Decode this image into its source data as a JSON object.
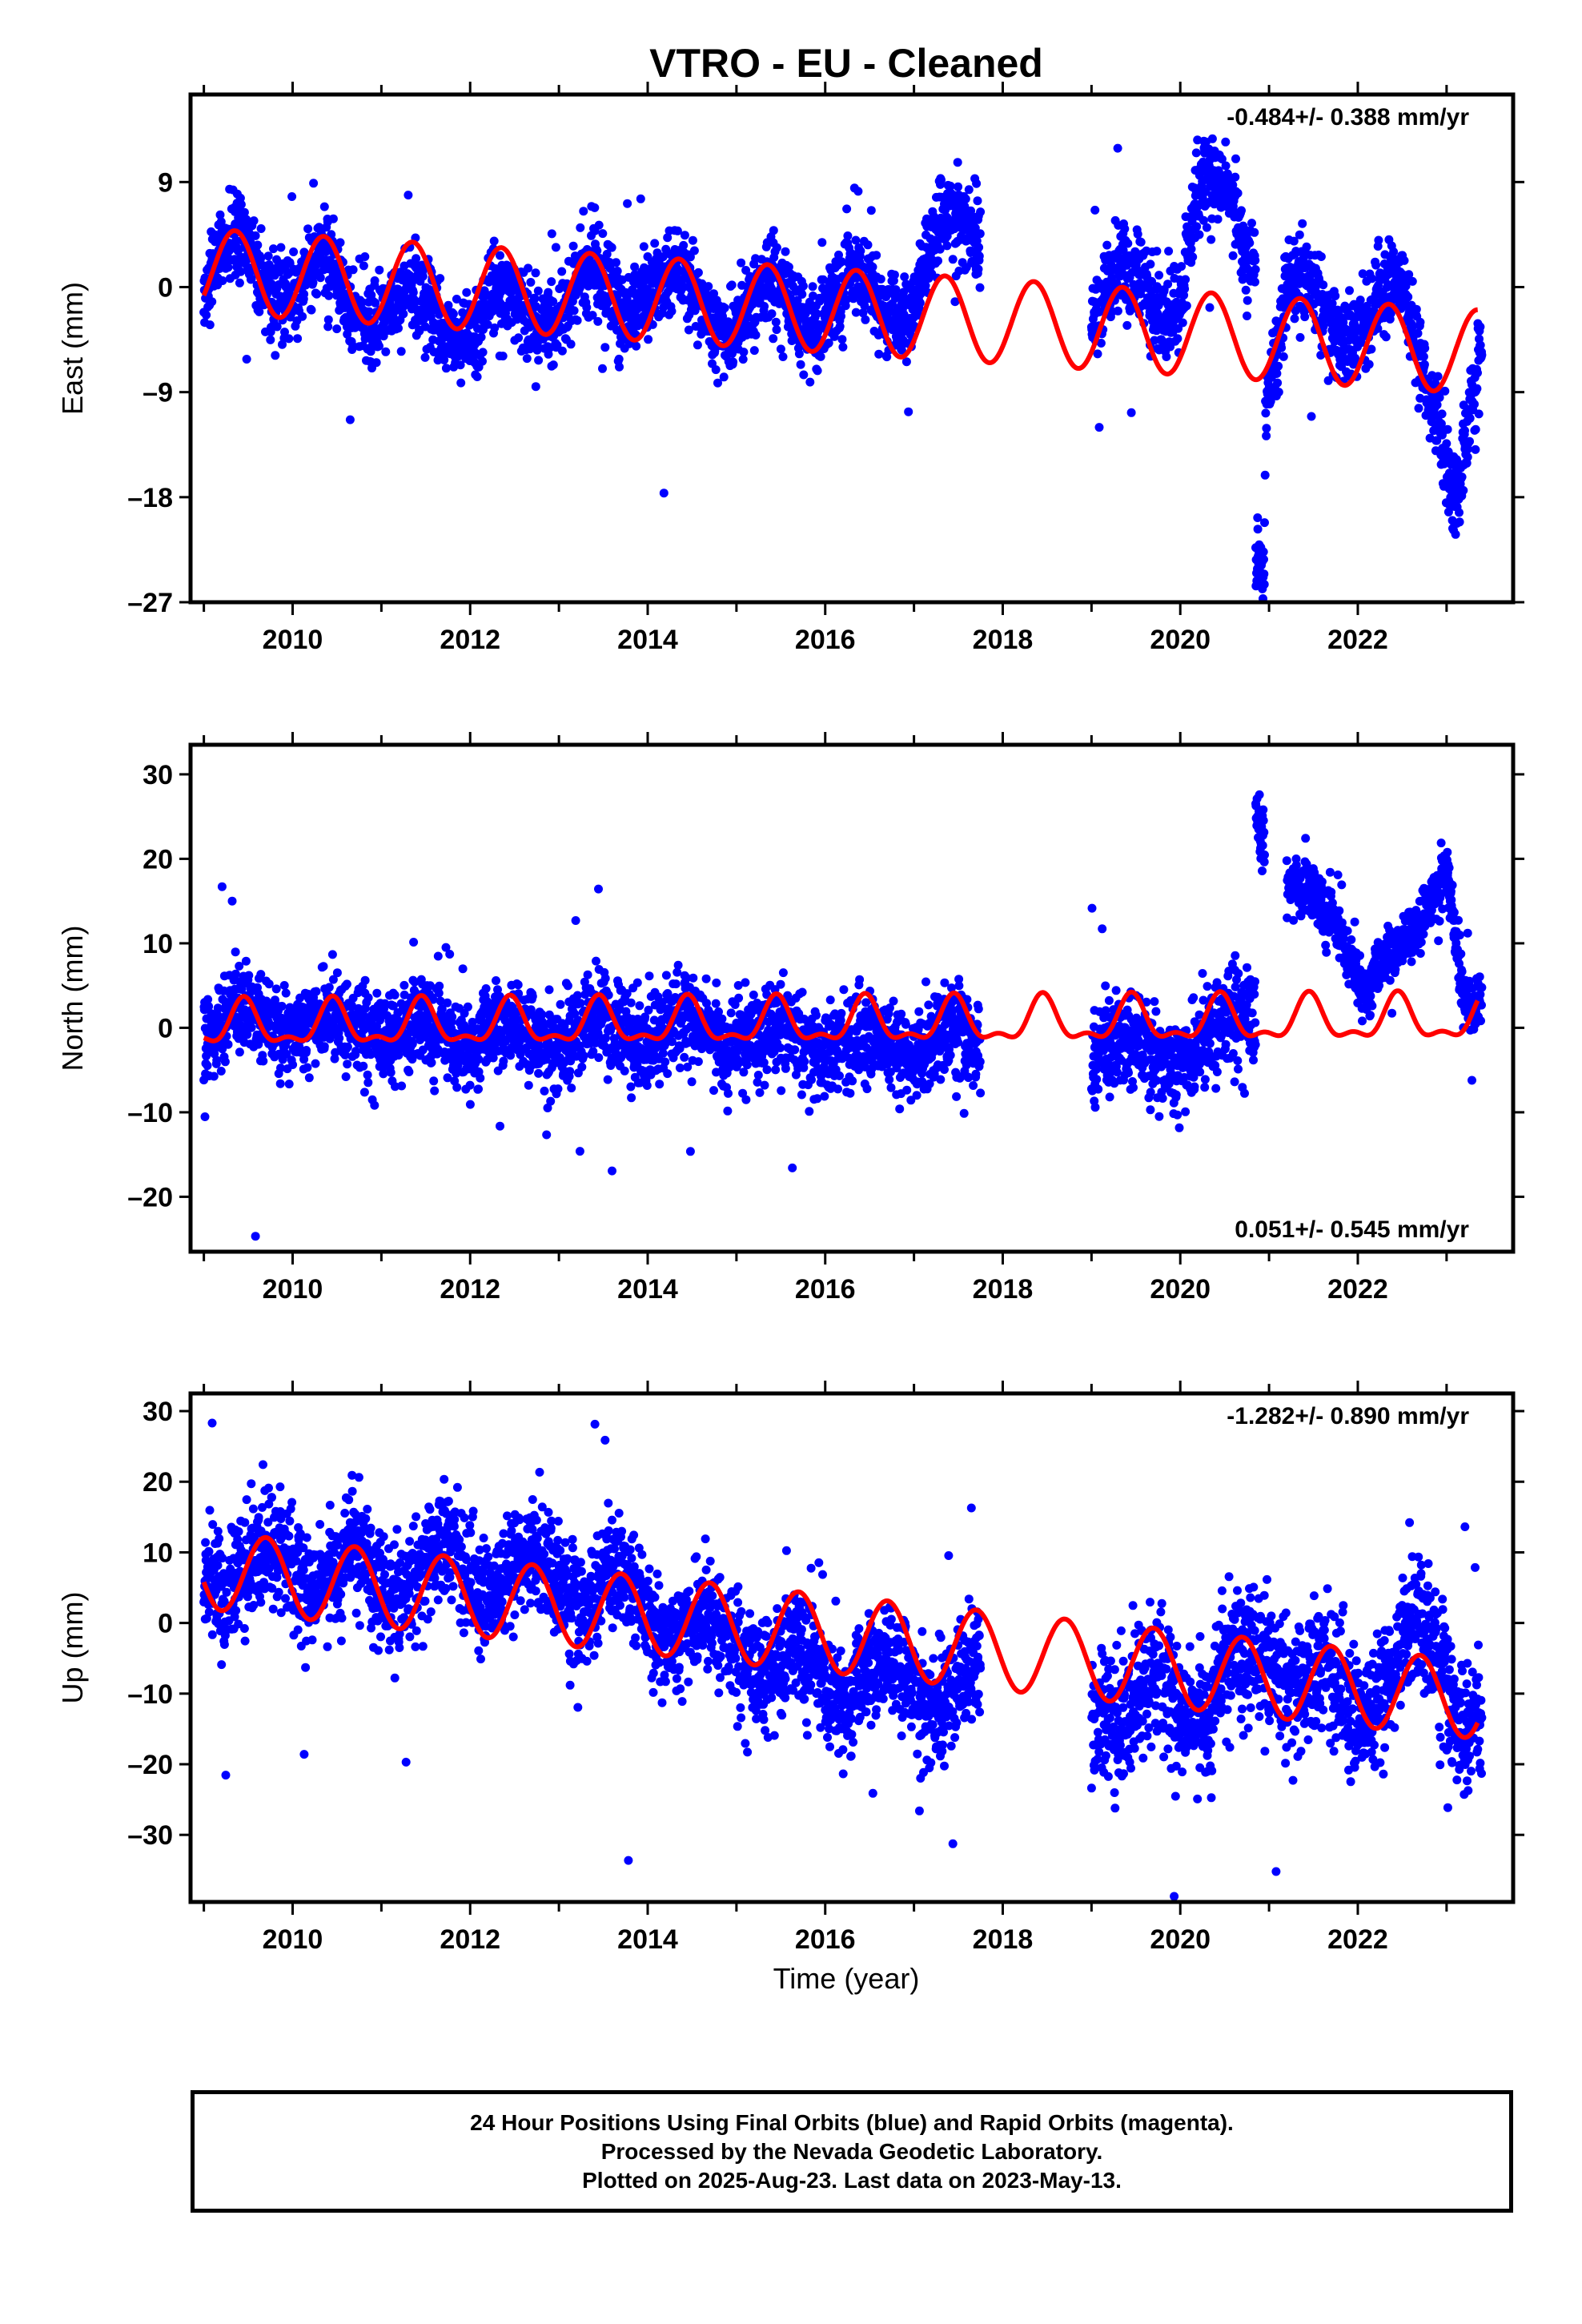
{
  "title": "VTRO  - EU - Cleaned",
  "xlabel": "Time (year)",
  "footer": {
    "line1": "24 Hour Positions Using Final Orbits (blue) and Rapid Orbits (magenta).",
    "line2": "Processed by the Nevada Geodetic Laboratory.",
    "line3": "Plotted on 2025-Aug-23. Last data on 2023-May-13."
  },
  "colors": {
    "data": "#0000ff",
    "model": "#ff0000",
    "axes": "#000000"
  },
  "chart_data": [
    {
      "type": "scatter",
      "component": "East",
      "ylabel": "East (mm)",
      "rate_text": "-0.484+/- 0.388 mm/yr",
      "xlim": [
        2008.85,
        2023.75
      ],
      "ylim": [
        -27,
        16.5
      ],
      "yticks": [
        -27,
        -18,
        -9,
        0,
        9
      ],
      "ytick_labels": [
        "–27",
        "–18",
        "–9",
        "0",
        "9"
      ],
      "xticks": [
        2010,
        2012,
        2014,
        2016,
        2018,
        2020,
        2022
      ],
      "data_segments": [
        {
          "from": 2009.0,
          "to": 2017.75,
          "center": [
            [
              2009.0,
              1
            ],
            [
              2009.4,
              2.5
            ],
            [
              2010.0,
              1
            ],
            [
              2011.0,
              -1.5
            ],
            [
              2012.0,
              -3
            ],
            [
              2013.0,
              -1
            ],
            [
              2014.0,
              0
            ],
            [
              2015.0,
              -2
            ],
            [
              2016.0,
              -1
            ],
            [
              2016.9,
              -1
            ],
            [
              2017.3,
              4
            ],
            [
              2017.75,
              6
            ]
          ],
          "spread": 2.8
        },
        {
          "from": 2019.0,
          "to": 2020.85,
          "center": [
            [
              2019.0,
              -2
            ],
            [
              2019.5,
              0
            ],
            [
              2020.0,
              0
            ],
            [
              2020.2,
              7
            ],
            [
              2020.6,
              7
            ],
            [
              2020.85,
              3
            ]
          ],
          "spread": 2.8
        },
        {
          "from": 2020.85,
          "to": 2020.95,
          "center": [
            [
              2020.85,
              -22
            ],
            [
              2020.95,
              -23
            ]
          ],
          "spread": 2.5
        },
        {
          "from": 2020.95,
          "to": 2023.4,
          "center": [
            [
              2020.95,
              -10
            ],
            [
              2021.2,
              -1
            ],
            [
              2022.0,
              -3
            ],
            [
              2022.5,
              -1
            ],
            [
              2022.9,
              -9
            ],
            [
              2023.1,
              -19
            ],
            [
              2023.4,
              -8
            ]
          ],
          "spread": 2.8
        }
      ],
      "model": {
        "trend_start": 1.4,
        "slope": -0.484,
        "amplitude": 3.6,
        "phase_peak": 0.35,
        "from": 2009.0,
        "to": 2023.35
      }
    },
    {
      "type": "scatter",
      "component": "North",
      "ylabel": "North (mm)",
      "rate_text": "0.051+/- 0.545 mm/yr",
      "xlim": [
        2008.85,
        2023.75
      ],
      "ylim": [
        -26.5,
        33.5
      ],
      "yticks": [
        -20,
        -10,
        0,
        10,
        20,
        30
      ],
      "ytick_labels": [
        "–20",
        "–10",
        "0",
        "10",
        "20",
        "30"
      ],
      "xticks": [
        2010,
        2012,
        2014,
        2016,
        2018,
        2020,
        2022
      ],
      "data_segments": [
        {
          "from": 2009.0,
          "to": 2017.75,
          "center": [
            [
              2009.0,
              0
            ],
            [
              2010.0,
              1
            ],
            [
              2012.0,
              -1
            ],
            [
              2014.0,
              0
            ],
            [
              2016.0,
              -2
            ],
            [
              2017.75,
              -2
            ]
          ],
          "spread": 4.0
        },
        {
          "from": 2019.0,
          "to": 2020.85,
          "center": [
            [
              2019.0,
              -3
            ],
            [
              2020.0,
              -3
            ],
            [
              2020.85,
              2
            ]
          ],
          "spread": 4.5
        },
        {
          "from": 2020.85,
          "to": 2020.95,
          "center": [
            [
              2020.85,
              27
            ],
            [
              2020.95,
              23
            ]
          ],
          "spread": 3.0
        },
        {
          "from": 2021.2,
          "to": 2023.4,
          "center": [
            [
              2021.2,
              17
            ],
            [
              2021.8,
              12
            ],
            [
              2022.1,
              5
            ],
            [
              2022.6,
              10
            ],
            [
              2023.0,
              21
            ],
            [
              2023.2,
              3
            ],
            [
              2023.4,
              1
            ]
          ],
          "spread": 2.5
        }
      ],
      "model": {
        "trend_start": 0.2,
        "slope": 0.051,
        "amplitude": 2.4,
        "phase_peak": 0.45,
        "semi_amp": 1.1,
        "from": 2009.0,
        "to": 2023.35
      }
    },
    {
      "type": "scatter",
      "component": "Up",
      "ylabel": "Up (mm)",
      "rate_text": "-1.282+/- 0.890 mm/yr",
      "xlim": [
        2008.85,
        2023.75
      ],
      "ylim": [
        -39.5,
        32.5
      ],
      "yticks": [
        -30,
        -20,
        -10,
        0,
        10,
        20,
        30
      ],
      "ytick_labels": [
        "–30",
        "–20",
        "–10",
        "0",
        "10",
        "20",
        "30"
      ],
      "xticks": [
        2010,
        2012,
        2014,
        2016,
        2018,
        2020,
        2022
      ],
      "data_segments": [
        {
          "from": 2009.0,
          "to": 2017.75,
          "center": [
            [
              2009.0,
              8
            ],
            [
              2010.0,
              8
            ],
            [
              2011.0,
              6
            ],
            [
              2012.0,
              8
            ],
            [
              2013.0,
              6
            ],
            [
              2014.0,
              2
            ],
            [
              2015.0,
              -3
            ],
            [
              2016.0,
              -8
            ],
            [
              2017.0,
              -8
            ],
            [
              2017.75,
              -10
            ]
          ],
          "spread": 6.0
        },
        {
          "from": 2019.0,
          "to": 2023.4,
          "center": [
            [
              2019.0,
              -10
            ],
            [
              2020.0,
              -12
            ],
            [
              2021.0,
              -5
            ],
            [
              2022.0,
              -12
            ],
            [
              2022.6,
              -2
            ],
            [
              2023.4,
              -15
            ]
          ],
          "spread": 7.0
        }
      ],
      "model": {
        "trend_start": 7.5,
        "slope": -1.282,
        "amplitude": 5.5,
        "phase_peak": 0.7,
        "from": 2009.0,
        "to": 2023.35
      }
    }
  ]
}
